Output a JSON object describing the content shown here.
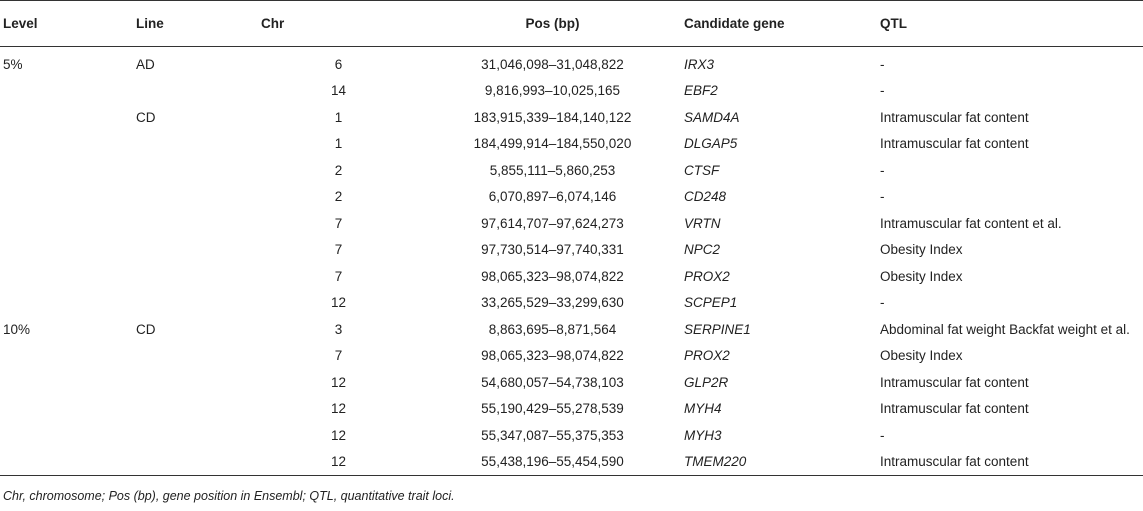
{
  "table": {
    "headers": {
      "level": "Level",
      "line": "Line",
      "chr": "Chr",
      "pos": "Pos (bp)",
      "gene": "Candidate gene",
      "qtl": "QTL"
    },
    "rows": [
      {
        "level": "5%",
        "line": "AD",
        "chr": "6",
        "pos": "31,046,098–31,048,822",
        "gene": "IRX3",
        "qtl": "-"
      },
      {
        "level": "",
        "line": "",
        "chr": "14",
        "pos": "9,816,993–10,025,165",
        "gene": "EBF2",
        "qtl": "-"
      },
      {
        "level": "",
        "line": "CD",
        "chr": "1",
        "pos": "183,915,339–184,140,122",
        "gene": "SAMD4A",
        "qtl": "Intramuscular fat content"
      },
      {
        "level": "",
        "line": "",
        "chr": "1",
        "pos": "184,499,914–184,550,020",
        "gene": "DLGAP5",
        "qtl": "Intramuscular fat content"
      },
      {
        "level": "",
        "line": "",
        "chr": "2",
        "pos": "5,855,111–5,860,253",
        "gene": "CTSF",
        "qtl": "-"
      },
      {
        "level": "",
        "line": "",
        "chr": "2",
        "pos": "6,070,897–6,074,146",
        "gene": "CD248",
        "qtl": "-"
      },
      {
        "level": "",
        "line": "",
        "chr": "7",
        "pos": "97,614,707–97,624,273",
        "gene": "VRTN",
        "qtl": "Intramuscular fat content et al."
      },
      {
        "level": "",
        "line": "",
        "chr": "7",
        "pos": "97,730,514–97,740,331",
        "gene": "NPC2",
        "qtl": "Obesity Index"
      },
      {
        "level": "",
        "line": "",
        "chr": "7",
        "pos": "98,065,323–98,074,822",
        "gene": "PROX2",
        "qtl": "Obesity Index"
      },
      {
        "level": "",
        "line": "",
        "chr": "12",
        "pos": "33,265,529–33,299,630",
        "gene": "SCPEP1",
        "qtl": "-"
      },
      {
        "level": "10%",
        "line": "CD",
        "chr": "3",
        "pos": "8,863,695–8,871,564",
        "gene": "SERPINE1",
        "qtl": "Abdominal fat weight Backfat weight et al."
      },
      {
        "level": "",
        "line": "",
        "chr": "7",
        "pos": "98,065,323–98,074,822",
        "gene": "PROX2",
        "qtl": "Obesity Index"
      },
      {
        "level": "",
        "line": "",
        "chr": "12",
        "pos": "54,680,057–54,738,103",
        "gene": "GLP2R",
        "qtl": "Intramuscular fat content"
      },
      {
        "level": "",
        "line": "",
        "chr": "12",
        "pos": "55,190,429–55,278,539",
        "gene": "MYH4",
        "qtl": "Intramuscular fat content"
      },
      {
        "level": "",
        "line": "",
        "chr": "12",
        "pos": "55,347,087–55,375,353",
        "gene": "MYH3",
        "qtl": "-"
      },
      {
        "level": "",
        "line": "",
        "chr": "12",
        "pos": "55,438,196–55,454,590",
        "gene": "TMEM220",
        "qtl": "Intramuscular fat content"
      }
    ]
  },
  "footnote": "Chr, chromosome; Pos (bp), gene position in Ensembl; QTL, quantitative trait loci."
}
